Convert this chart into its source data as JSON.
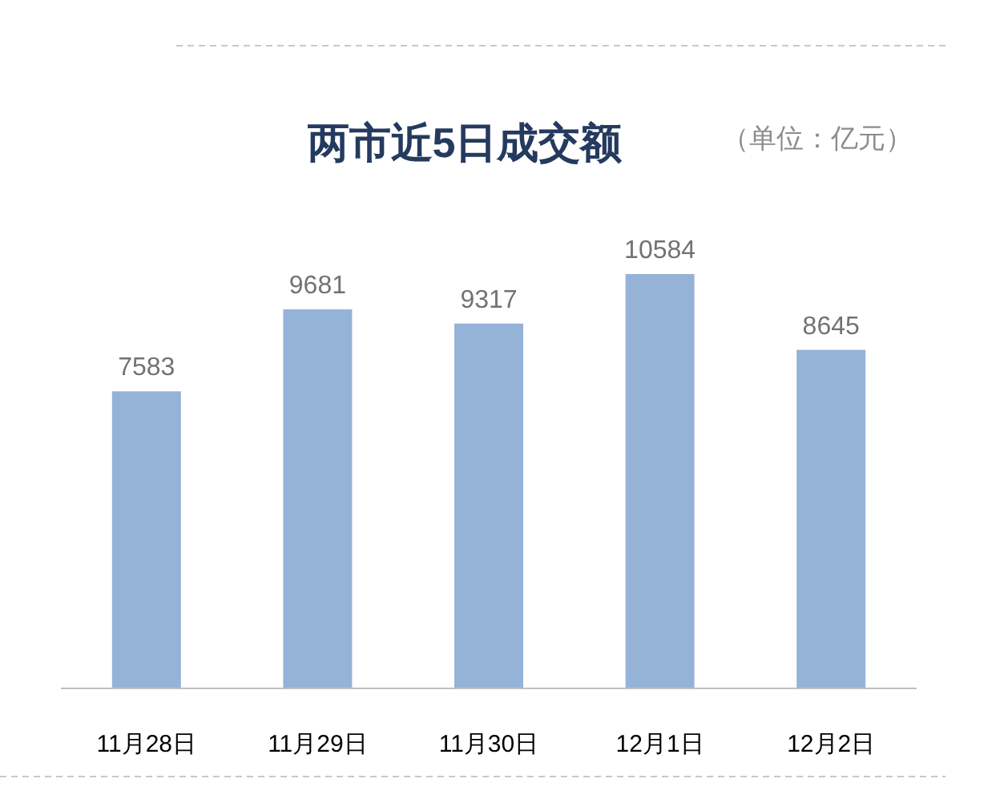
{
  "chart_data": {
    "type": "bar",
    "title": "两市近5日成交额",
    "subtitle": "（单位：亿元）",
    "categories": [
      "11月28日",
      "11月29日",
      "11月30日",
      "12月1日",
      "12月2日"
    ],
    "values": [
      7583,
      9681,
      9317,
      10584,
      8645
    ],
    "color": "#95b3d7",
    "data_labels": true
  }
}
